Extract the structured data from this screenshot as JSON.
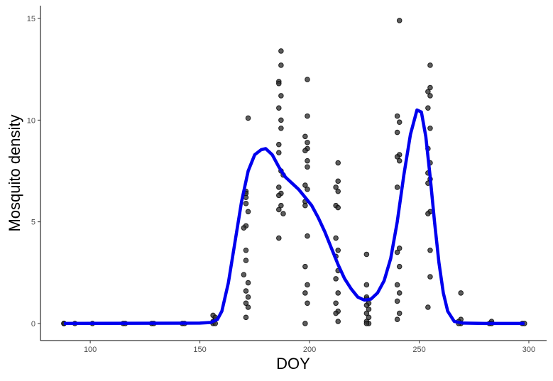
{
  "chart_data": {
    "type": "scatter",
    "x_label": "DOY",
    "y_label": "Mosquito density",
    "xlim": [
      77.3,
      308.1
    ],
    "ylim": [
      -0.84,
      15.63
    ],
    "xticks": [
      100,
      150,
      200,
      250,
      300
    ],
    "yticks": [
      0,
      5,
      10,
      15
    ],
    "grid": false,
    "points": {
      "color": "#333333",
      "x": [
        88,
        88,
        88,
        93,
        101,
        115,
        116,
        128,
        129,
        142,
        143,
        156,
        157,
        156,
        157,
        156,
        157,
        171,
        171,
        171,
        171,
        172,
        171,
        170,
        171,
        171,
        170,
        172,
        171,
        172,
        171,
        172,
        171,
        172,
        187,
        187,
        186,
        186,
        187,
        186,
        187,
        187,
        186,
        186,
        187,
        188,
        186,
        187,
        186,
        187,
        186,
        188,
        186,
        199,
        199,
        198,
        199,
        199,
        198,
        199,
        199,
        198,
        199,
        198,
        198,
        199,
        198,
        199,
        198,
        199,
        198,
        213,
        213,
        212,
        213,
        212,
        213,
        212,
        213,
        212,
        213,
        212,
        213,
        212,
        213,
        212,
        213,
        226,
        226,
        226,
        226,
        227,
        226,
        227,
        226,
        227,
        226,
        227,
        226,
        241,
        240,
        241,
        240,
        241,
        240,
        241,
        240,
        241,
        240,
        241,
        240,
        241,
        240,
        241,
        240,
        255,
        255,
        254,
        255,
        254,
        255,
        254,
        255,
        254,
        255,
        254,
        255,
        254,
        255,
        255,
        254,
        269,
        269,
        268,
        269,
        268,
        283,
        282,
        283,
        297,
        298
      ],
      "y": [
        0,
        0,
        0,
        0,
        0,
        0,
        0,
        0,
        0,
        0,
        0,
        0.4,
        0.2,
        0.1,
        0.3,
        0,
        0,
        6.5,
        6.4,
        6.2,
        5.9,
        5.5,
        4.8,
        4.7,
        3.6,
        3.1,
        2.4,
        2,
        1.6,
        1.3,
        1,
        0.8,
        0.3,
        10.1,
        13.4,
        12.7,
        11.9,
        11.8,
        11.2,
        10.6,
        10,
        9.6,
        8.8,
        8.4,
        7.5,
        7.3,
        6.7,
        6.4,
        6.3,
        5.8,
        5.6,
        5.4,
        4.2,
        12,
        10.2,
        9.2,
        8.9,
        8.6,
        8.5,
        8,
        7.7,
        6.8,
        6.6,
        6,
        5.8,
        4.3,
        2.8,
        1.9,
        1.5,
        1,
        0,
        7.9,
        7,
        6.7,
        6.5,
        5.8,
        5.7,
        4.2,
        3.6,
        3.3,
        2.6,
        2.2,
        1.5,
        1,
        0.6,
        0.5,
        0.1,
        3.4,
        1.9,
        1.3,
        1.2,
        1,
        0.9,
        0.7,
        0.5,
        0.3,
        0.1,
        0,
        0,
        14.9,
        10.2,
        9.9,
        9.4,
        8.3,
        8.2,
        8,
        6.7,
        3.7,
        3.5,
        2.8,
        1.9,
        1.5,
        1.1,
        0.5,
        0.2,
        12.7,
        11.6,
        11.4,
        11.2,
        10.6,
        9.6,
        8.6,
        7.9,
        7.4,
        7.1,
        6.9,
        5.5,
        5.4,
        3.6,
        2.3,
        0.8,
        1.5,
        0.2,
        0.1,
        0,
        0,
        0.1,
        0,
        0,
        0,
        0
      ]
    },
    "curve": {
      "color": "#0000ee",
      "x": [
        88,
        150,
        155,
        158,
        160,
        163,
        166,
        169,
        172,
        175,
        178,
        180,
        183,
        186,
        189,
        192,
        195,
        198,
        201,
        204,
        207,
        210,
        213,
        216,
        219,
        222,
        225,
        228,
        231,
        234,
        237,
        240,
        243,
        246,
        249,
        251,
        253,
        255,
        257,
        259,
        261,
        263,
        266,
        270,
        280,
        298
      ],
      "y": [
        0,
        0.02,
        0.05,
        0.2,
        0.6,
        2,
        4,
        6,
        7.5,
        8.3,
        8.55,
        8.6,
        8.3,
        7.7,
        7.2,
        6.9,
        6.6,
        6.2,
        5.8,
        5.2,
        4.5,
        3.7,
        2.9,
        2.2,
        1.7,
        1.3,
        1.15,
        1.2,
        1.5,
        2.1,
        3.2,
        5,
        7.3,
        9.3,
        10.5,
        10.4,
        9.2,
        7.2,
        5,
        3,
        1.5,
        0.6,
        0.1,
        0.02,
        0,
        0
      ]
    }
  }
}
